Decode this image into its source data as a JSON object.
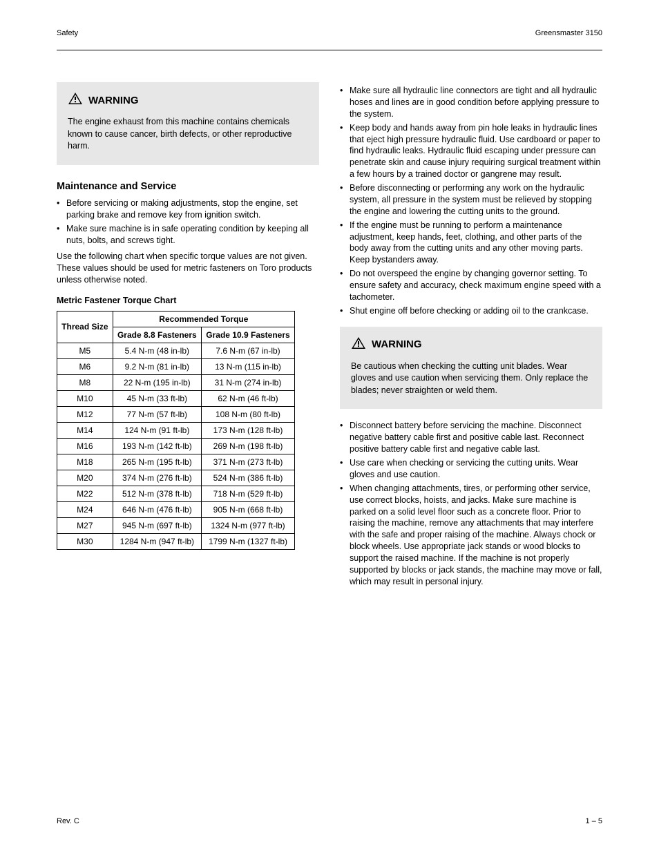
{
  "header": {
    "left": "Safety",
    "right": "Greensmaster 3150"
  },
  "footer": {
    "left": "Rev. C",
    "page": "1 – 5"
  },
  "col_left": {
    "warning": {
      "label": "WARNING",
      "text": "The engine exhaust from this machine contains chemicals known to cause cancer, birth defects, or other reproductive harm."
    },
    "maintenance": {
      "heading": "Maintenance and Service",
      "bullets": [
        "Before servicing or making adjustments, stop the engine, set parking brake and remove key from ignition switch.",
        "Make sure machine is in safe operating condition by keeping all nuts, bolts, and screws tight."
      ],
      "after_bullets": "Use the following chart when specific torque values are not given. These values should be used for metric fasteners on Toro products unless otherwise noted."
    },
    "table": {
      "title": "Metric Fastener Torque Chart",
      "header_group": "Recommended Torque",
      "col_thread": "Thread Size",
      "col_grade88": "Grade 8.8 Fasteners",
      "col_grade109": "Grade 10.9 Fasteners",
      "rows": [
        {
          "size": "M5",
          "g88": "5.4 N-m (48 in-lb)",
          "g109": "7.6 N-m (67 in-lb)"
        },
        {
          "size": "M6",
          "g88": "9.2 N-m (81 in-lb)",
          "g109": "13 N-m (115 in-lb)"
        },
        {
          "size": "M8",
          "g88": "22 N-m (195 in-lb)",
          "g109": "31 N-m (274 in-lb)"
        },
        {
          "size": "M10",
          "g88": "45 N-m (33 ft-lb)",
          "g109": "62 N-m (46 ft-lb)"
        },
        {
          "size": "M12",
          "g88": "77 N-m (57 ft-lb)",
          "g109": "108 N-m (80 ft-lb)"
        },
        {
          "size": "M14",
          "g88": "124 N-m (91 ft-lb)",
          "g109": "173 N-m (128 ft-lb)"
        },
        {
          "size": "M16",
          "g88": "193 N-m (142 ft-lb)",
          "g109": "269 N-m (198 ft-lb)"
        },
        {
          "size": "M18",
          "g88": "265 N-m (195 ft-lb)",
          "g109": "371 N-m (273 ft-lb)"
        },
        {
          "size": "M20",
          "g88": "374 N-m (276 ft-lb)",
          "g109": "524 N-m (386 ft-lb)"
        },
        {
          "size": "M22",
          "g88": "512 N-m (378 ft-lb)",
          "g109": "718 N-m (529 ft-lb)"
        },
        {
          "size": "M24",
          "g88": "646 N-m (476 ft-lb)",
          "g109": "905 N-m (668 ft-lb)"
        },
        {
          "size": "M27",
          "g88": "945 N-m (697 ft-lb)",
          "g109": "1324 N-m (977 ft-lb)"
        },
        {
          "size": "M30",
          "g88": "1284 N-m (947 ft-lb)",
          "g109": "1799 N-m (1327 ft-lb)"
        }
      ]
    }
  },
  "col_right": {
    "bullets_top": [
      "Make sure all hydraulic line connectors are tight and all hydraulic hoses and lines are in good condition before applying pressure to the system.",
      "Keep body and hands away from pin hole leaks in hydraulic lines that eject high pressure hydraulic fluid. Use cardboard or paper to find hydraulic leaks. Hydraulic fluid escaping under pressure can penetrate skin and cause injury requiring surgical treatment within a few hours by a trained doctor or gangrene may result.",
      "Before disconnecting or performing any work on the hydraulic system, all pressure in the system must be relieved by stopping the engine and lowering the cutting units to the ground.",
      "If the engine must be running to perform a maintenance adjustment, keep hands, feet, clothing, and other parts of the body away from the cutting units and any other moving parts. Keep bystanders away.",
      "Do not overspeed the engine by changing governor setting. To ensure safety and accuracy, check maximum engine speed with a tachometer.",
      "Shut engine off before checking or adding oil to the crankcase."
    ],
    "warning": {
      "label": "WARNING",
      "text": "Be cautious when checking the cutting unit blades. Wear gloves and use caution when servicing them. Only replace the blades; never straighten or weld them."
    },
    "bullets_bottom": [
      "Disconnect battery before servicing the machine. Disconnect negative battery cable first and positive cable last. Reconnect positive battery cable first and negative cable last.",
      "Use care when checking or servicing the cutting units. Wear gloves and use caution.",
      "When changing attachments, tires, or performing other service, use correct blocks, hoists, and jacks. Make sure machine is parked on a solid level floor such as a concrete floor. Prior to raising the machine, remove any attachments that may interfere with the safe and proper raising of the machine. Always chock or block wheels. Use appropriate jack stands or wood blocks to support the raised machine. If the machine is not properly supported by blocks or jack stands, the machine may move or fall, which may result in personal injury."
    ]
  },
  "colors": {
    "warning_bg": "#e7e7e7",
    "text": "#000000",
    "rule": "#000000"
  }
}
